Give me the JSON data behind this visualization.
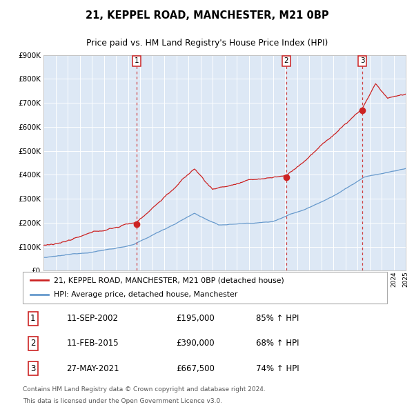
{
  "title": "21, KEPPEL ROAD, MANCHESTER, M21 0BP",
  "subtitle": "Price paid vs. HM Land Registry's House Price Index (HPI)",
  "red_label": "21, KEPPEL ROAD, MANCHESTER, M21 0BP (detached house)",
  "blue_label": "HPI: Average price, detached house, Manchester",
  "footer1": "Contains HM Land Registry data © Crown copyright and database right 2024.",
  "footer2": "This data is licensed under the Open Government Licence v3.0.",
  "sales": [
    {
      "num": 1,
      "date": "11-SEP-2002",
      "price": "£195,000",
      "hpi_pct": "85% ↑ HPI"
    },
    {
      "num": 2,
      "date": "11-FEB-2015",
      "price": "£390,000",
      "hpi_pct": "68% ↑ HPI"
    },
    {
      "num": 3,
      "date": "27-MAY-2021",
      "price": "£667,500",
      "hpi_pct": "74% ↑ HPI"
    }
  ],
  "sale_years": [
    2002.7,
    2015.1,
    2021.4
  ],
  "sale_prices": [
    195000,
    390000,
    667500
  ],
  "bg_color": "#dde8f5",
  "grid_color": "#ffffff",
  "red_color": "#cc2222",
  "blue_color": "#6699cc",
  "ylim": [
    0,
    900000
  ],
  "yticks": [
    0,
    100000,
    200000,
    300000,
    400000,
    500000,
    600000,
    700000,
    800000,
    900000
  ],
  "ytick_labels": [
    "£0",
    "£100K",
    "£200K",
    "£300K",
    "£400K",
    "£500K",
    "£600K",
    "£700K",
    "£800K",
    "£900K"
  ],
  "xlim": [
    1995,
    2025
  ]
}
